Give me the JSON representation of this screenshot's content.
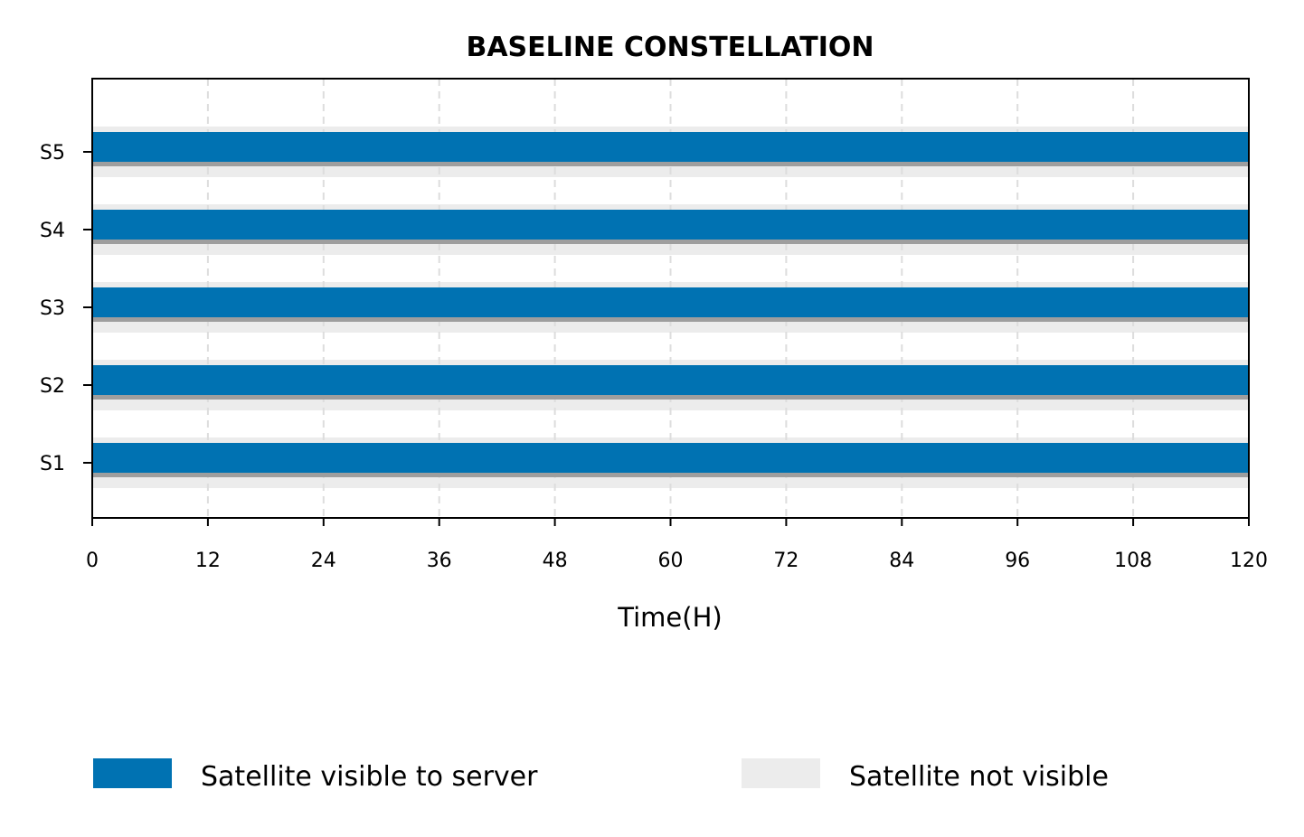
{
  "chart_data": {
    "type": "timeline",
    "title": "BASELINE CONSTELLATION",
    "xlabel": "Time(H)",
    "ylabel": "",
    "xlim": [
      0,
      120
    ],
    "x_ticks": [
      0,
      12,
      24,
      36,
      48,
      60,
      72,
      84,
      96,
      108,
      120
    ],
    "categories": [
      "S1",
      "S2",
      "S3",
      "S4",
      "S5"
    ],
    "grid": "vertical dashed",
    "series": [
      {
        "name": "Satellite visible to server",
        "color": "#0072B2",
        "intervals": [
          {
            "satellite": "S1",
            "start": 0,
            "end": 120
          },
          {
            "satellite": "S2",
            "start": 0,
            "end": 120
          },
          {
            "satellite": "S3",
            "start": 0,
            "end": 120
          },
          {
            "satellite": "S4",
            "start": 0,
            "end": 120
          },
          {
            "satellite": "S5",
            "start": 0,
            "end": 120
          }
        ]
      },
      {
        "name": "Satellite not visible",
        "color": "#ECECEC",
        "intervals": []
      }
    ],
    "legend_position": "bottom"
  }
}
